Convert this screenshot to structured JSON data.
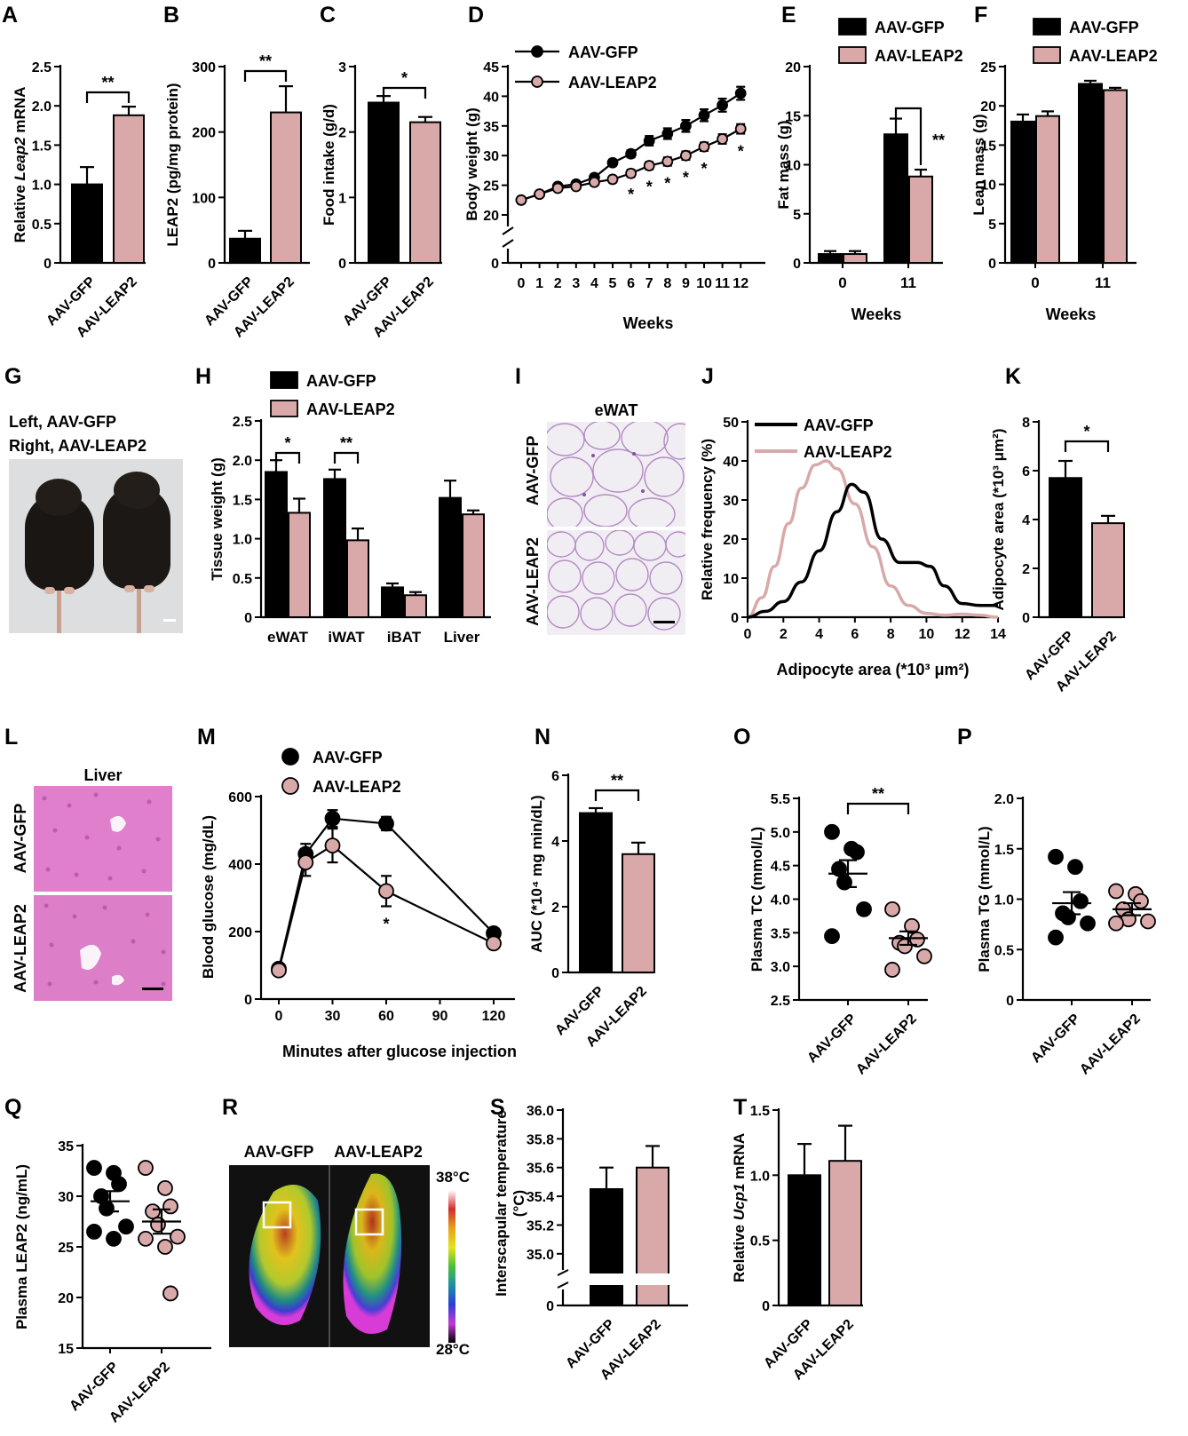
{
  "colors": {
    "gfp": "#000000",
    "leap2": "#d9a9a9",
    "leap2_edge": "#000000"
  },
  "panel_letters": [
    "A",
    "B",
    "C",
    "D",
    "E",
    "F",
    "G",
    "H",
    "I",
    "J",
    "K",
    "L",
    "M",
    "N",
    "O",
    "P",
    "Q",
    "R",
    "S",
    "T"
  ],
  "groups": [
    "AAV-GFP",
    "AAV-LEAP2"
  ],
  "photo_G": {
    "line1": "Left, AAV-GFP",
    "line2": "Right, AAV-LEAP2"
  },
  "photo_I": {
    "title": "eWAT",
    "row1": "AAV-GFP",
    "row2": "AAV-LEAP2"
  },
  "photo_L": {
    "title": "Liver",
    "row1": "AAV-GFP",
    "row2": "AAV-LEAP2"
  },
  "thermal_R": {
    "left_label": "AAV-GFP",
    "right_label": "AAV-LEAP2",
    "scale_max": "38°C",
    "scale_min": "28°C"
  },
  "chart_data": [
    {
      "id": "A",
      "type": "bar",
      "categories": [
        "AAV-GFP",
        "AAV-LEAP2"
      ],
      "values": [
        1.0,
        1.88
      ],
      "errors": [
        0.22,
        0.11
      ],
      "ylabel": "Relative Leap2 mRNA",
      "ylim": [
        0,
        2.5
      ],
      "yticks": [
        "0",
        "0.5",
        "1.0",
        "1.5",
        "2.0",
        "2.5"
      ],
      "significance": [
        {
          "from": 0,
          "to": 1,
          "label": "**"
        }
      ]
    },
    {
      "id": "B",
      "type": "bar",
      "categories": [
        "AAV-GFP",
        "AAV-LEAP2"
      ],
      "values": [
        37,
        230
      ],
      "errors": [
        12,
        40
      ],
      "ylabel": "LEAP2 (pg/mg protein)",
      "ylim": [
        0,
        300
      ],
      "yticks": [
        "0",
        "100",
        "200",
        "300"
      ],
      "significance": [
        {
          "from": 0,
          "to": 1,
          "label": "**"
        }
      ]
    },
    {
      "id": "C",
      "type": "bar",
      "categories": [
        "AAV-GFP",
        "AAV-LEAP2"
      ],
      "values": [
        2.45,
        2.15
      ],
      "errors": [
        0.1,
        0.08
      ],
      "ylabel": "Food intake (g/d)",
      "ylim": [
        0,
        3
      ],
      "yticks": [
        "0",
        "1",
        "2",
        "3"
      ],
      "significance": [
        {
          "from": 0,
          "to": 1,
          "label": "*"
        }
      ]
    },
    {
      "id": "D",
      "type": "line",
      "x": [
        0,
        1,
        2,
        3,
        4,
        5,
        6,
        7,
        8,
        9,
        10,
        11,
        12
      ],
      "xlabel": "Weeks",
      "ylabel": "Body weight (g)",
      "yticks": [
        "0",
        "20",
        "25",
        "30",
        "35",
        "40",
        "45"
      ],
      "ylim": [
        20,
        45
      ],
      "axis_break": true,
      "series": [
        {
          "name": "AAV-GFP",
          "values": [
            22.5,
            23.5,
            24.8,
            25.2,
            26.3,
            28.8,
            30.3,
            32.5,
            33.7,
            35.0,
            36.8,
            38.5,
            40.5
          ],
          "errors": [
            0.3,
            0.3,
            0.4,
            0.4,
            0.5,
            0.5,
            0.6,
            0.8,
            0.9,
            1.0,
            1.0,
            1.1,
            1.1
          ]
        },
        {
          "name": "AAV-LEAP2",
          "values": [
            22.5,
            23.5,
            24.5,
            24.8,
            25.5,
            26.0,
            27.0,
            28.3,
            29.0,
            30.0,
            31.5,
            32.8,
            34.5
          ],
          "errors": [
            0.3,
            0.3,
            0.4,
            0.4,
            0.5,
            0.5,
            0.6,
            0.6,
            0.7,
            0.7,
            0.7,
            0.8,
            0.8
          ]
        }
      ],
      "sig_points": [
        {
          "x": 6,
          "label": "*"
        },
        {
          "x": 7,
          "label": "*"
        },
        {
          "x": 8,
          "label": "*"
        },
        {
          "x": 9,
          "label": "*"
        },
        {
          "x": 10,
          "label": "*"
        },
        {
          "x": 12,
          "label": "*"
        }
      ]
    },
    {
      "id": "E",
      "type": "bar",
      "categories": [
        "0",
        "11"
      ],
      "xlabel": "Weeks",
      "ylabel": "Fat mass (g)",
      "ylim": [
        0,
        20
      ],
      "yticks": [
        "0",
        "5",
        "10",
        "15",
        "20"
      ],
      "series": [
        {
          "name": "AAV-GFP",
          "values": [
            0.9,
            13.1
          ],
          "errors": [
            0.3,
            1.6
          ]
        },
        {
          "name": "AAV-LEAP2",
          "values": [
            0.9,
            8.8
          ],
          "errors": [
            0.3,
            0.7
          ]
        }
      ],
      "significance": [
        {
          "category": 1,
          "label": "**"
        }
      ]
    },
    {
      "id": "F",
      "type": "bar",
      "categories": [
        "0",
        "11"
      ],
      "xlabel": "Weeks",
      "ylabel": "Lean mass (g)",
      "ylim": [
        0,
        25
      ],
      "yticks": [
        "0",
        "5",
        "10",
        "15",
        "20",
        "25"
      ],
      "series": [
        {
          "name": "AAV-GFP",
          "values": [
            18.0,
            22.8
          ],
          "errors": [
            0.9,
            0.4
          ]
        },
        {
          "name": "AAV-LEAP2",
          "values": [
            18.7,
            22.0
          ],
          "errors": [
            0.6,
            0.3
          ]
        }
      ]
    },
    {
      "id": "H",
      "type": "bar",
      "categories": [
        "eWAT",
        "iWAT",
        "iBAT",
        "Liver"
      ],
      "ylabel": "Tissue weight (g)",
      "ylim": [
        0,
        2.5
      ],
      "yticks": [
        "0",
        "0.5",
        "1.0",
        "1.5",
        "2.0",
        "2.5"
      ],
      "series": [
        {
          "name": "AAV-GFP",
          "values": [
            1.85,
            1.76,
            0.38,
            1.52
          ],
          "errors": [
            0.15,
            0.12,
            0.05,
            0.22
          ]
        },
        {
          "name": "AAV-LEAP2",
          "values": [
            1.33,
            0.98,
            0.28,
            1.31
          ],
          "errors": [
            0.18,
            0.15,
            0.04,
            0.05
          ]
        }
      ],
      "significance": [
        {
          "category": 0,
          "label": "*"
        },
        {
          "category": 1,
          "label": "**"
        }
      ]
    },
    {
      "id": "J",
      "type": "line",
      "xlabel": "Adipocyte area (*10³ μm²)",
      "ylabel": "Relative frequency (%)",
      "xlim": [
        0,
        14
      ],
      "ylim": [
        0,
        50
      ],
      "xticks": [
        "0",
        "2",
        "4",
        "6",
        "8",
        "10",
        "12",
        "14"
      ],
      "yticks": [
        "0",
        "10",
        "20",
        "30",
        "40",
        "50"
      ],
      "series": [
        {
          "name": "AAV-GFP",
          "x": [
            0,
            1,
            2,
            3,
            4,
            5,
            5.8,
            6.5,
            7.5,
            8.5,
            9.5,
            10.2,
            11,
            12,
            13,
            14
          ],
          "values": [
            0,
            1.5,
            4,
            9,
            17,
            27,
            34,
            32,
            20,
            14,
            14,
            13,
            8,
            3.5,
            3,
            3
          ]
        },
        {
          "name": "AAV-LEAP2",
          "x": [
            0,
            0.8,
            1.5,
            2.3,
            3,
            3.8,
            4.4,
            5,
            6,
            7,
            8,
            9,
            10,
            11,
            12,
            13,
            14
          ],
          "values": [
            0,
            5,
            13,
            24,
            33,
            39,
            40,
            38,
            29,
            18,
            8,
            3,
            1,
            0.5,
            0.8,
            0.5,
            0
          ]
        }
      ]
    },
    {
      "id": "K",
      "type": "bar",
      "categories": [
        "AAV-GFP",
        "AAV-LEAP2"
      ],
      "values": [
        5.7,
        3.85
      ],
      "errors": [
        0.7,
        0.3
      ],
      "ylabel": "Adipocyte area (*10³ μm²)",
      "ylim": [
        0,
        8
      ],
      "yticks": [
        "0",
        "2",
        "4",
        "6",
        "8"
      ],
      "significance": [
        {
          "from": 0,
          "to": 1,
          "label": "*"
        }
      ]
    },
    {
      "id": "M",
      "type": "line",
      "x": [
        0,
        15,
        30,
        60,
        120
      ],
      "xlabel": "Minutes after glucose injection",
      "ylabel": "Blood glucose (mg/dL)",
      "ylim": [
        0,
        600
      ],
      "xticks": [
        "0",
        "30",
        "60",
        "90",
        "120"
      ],
      "yticks": [
        "0",
        "200",
        "400",
        "600"
      ],
      "series": [
        {
          "name": "AAV-GFP",
          "values": [
            90,
            430,
            535,
            520,
            195
          ],
          "errors": [
            10,
            30,
            25,
            20,
            10
          ]
        },
        {
          "name": "AAV-LEAP2",
          "values": [
            85,
            405,
            455,
            320,
            165
          ],
          "errors": [
            10,
            40,
            50,
            45,
            10
          ]
        }
      ],
      "sig_points": [
        {
          "x": 60,
          "label": "*"
        }
      ]
    },
    {
      "id": "N",
      "type": "bar",
      "categories": [
        "AAV-GFP",
        "AAV-LEAP2"
      ],
      "values": [
        4.85,
        3.6
      ],
      "errors": [
        0.15,
        0.35
      ],
      "ylabel": "AUC (*10⁴ mg min/dL)",
      "ylim": [
        0,
        6
      ],
      "yticks": [
        "0",
        "2",
        "4",
        "6"
      ],
      "significance": [
        {
          "from": 0,
          "to": 1,
          "label": "**"
        }
      ]
    },
    {
      "id": "O",
      "type": "scatter",
      "categories": [
        "AAV-GFP",
        "AAV-LEAP2"
      ],
      "ylabel": "Plasma TC (mmol/L)",
      "ylim": [
        2.5,
        5.5
      ],
      "yticks": [
        "2.5",
        "3.0",
        "3.5",
        "4.0",
        "4.5",
        "5.0",
        "5.5"
      ],
      "points": [
        [
          5.0,
          4.75,
          4.7,
          4.45,
          4.25,
          3.85,
          3.45
        ],
        [
          3.85,
          3.6,
          3.4,
          3.35,
          3.3,
          3.15,
          2.95
        ]
      ],
      "means": [
        4.38,
        3.42
      ],
      "sems": [
        0.2,
        0.1
      ],
      "significance": [
        {
          "from": 0,
          "to": 1,
          "label": "**"
        }
      ]
    },
    {
      "id": "P",
      "type": "scatter",
      "categories": [
        "AAV-GFP",
        "AAV-LEAP2"
      ],
      "ylabel": "Plasma TG (mmol/L)",
      "ylim": [
        0,
        2.0
      ],
      "yticks": [
        "0",
        "0.5",
        "1.0",
        "1.5",
        "2.0"
      ],
      "points": [
        [
          1.42,
          1.32,
          0.98,
          0.86,
          0.82,
          0.76,
          0.62
        ],
        [
          1.08,
          1.05,
          0.98,
          0.9,
          0.8,
          0.78,
          0.76
        ]
      ],
      "means": [
        0.96,
        0.9
      ],
      "sems": [
        0.11,
        0.06
      ]
    },
    {
      "id": "Q",
      "type": "scatter",
      "categories": [
        "AAV-GFP",
        "AAV-LEAP2"
      ],
      "ylabel": "Plasma LEAP2 (ng/mL)",
      "ylim": [
        15,
        35
      ],
      "yticks": [
        "15",
        "20",
        "25",
        "30",
        "35"
      ],
      "points": [
        [
          32.8,
          32.3,
          31.2,
          30.0,
          28.8,
          27.0,
          26.5,
          25.8
        ],
        [
          32.8,
          30.8,
          29.0,
          28.5,
          27.2,
          26.0,
          25.8,
          25.0,
          20.4
        ]
      ],
      "means": [
        29.5,
        27.5
      ],
      "sems": [
        1.0,
        1.2
      ]
    },
    {
      "id": "S",
      "type": "bar",
      "categories": [
        "AAV-GFP",
        "AAV-LEAP2"
      ],
      "values": [
        35.45,
        35.6
      ],
      "errors": [
        0.15,
        0.15
      ],
      "ylabel": "Interscapular temperature (°C)",
      "ylim": [
        34.8,
        36.0
      ],
      "axis_break": true,
      "yticks": [
        "0",
        "35.0",
        "35.2",
        "35.4",
        "35.6",
        "35.8",
        "36.0"
      ]
    },
    {
      "id": "T",
      "type": "bar",
      "categories": [
        "AAV-GFP",
        "AAV-LEAP2"
      ],
      "values": [
        1.0,
        1.11
      ],
      "errors": [
        0.24,
        0.27
      ],
      "ylabel": "Relative Ucp1 mRNA",
      "ylim": [
        0,
        1.5
      ],
      "yticks": [
        "0",
        "0.5",
        "1.0",
        "1.5"
      ]
    }
  ]
}
